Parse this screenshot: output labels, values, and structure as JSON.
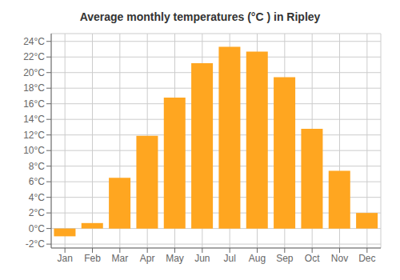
{
  "chart_data": {
    "type": "bar",
    "title": "Average monthly temperatures (°C ) in Ripley",
    "categories": [
      "Jan",
      "Feb",
      "Mar",
      "Apr",
      "May",
      "Jun",
      "Jul",
      "Aug",
      "Sep",
      "Oct",
      "Nov",
      "Dec"
    ],
    "values": [
      -1.0,
      0.7,
      6.5,
      11.9,
      16.8,
      21.2,
      23.3,
      22.7,
      19.4,
      12.8,
      7.4,
      2.0
    ],
    "color": "#FFA620",
    "ylim": [
      -2.5,
      25
    ],
    "yticks": [
      {
        "value": -2,
        "label": "-2°C"
      },
      {
        "value": 0,
        "label": "0°C"
      },
      {
        "value": 2,
        "label": "2°C"
      },
      {
        "value": 4,
        "label": "4°C"
      },
      {
        "value": 6,
        "label": "6°C"
      },
      {
        "value": 8,
        "label": "8°C"
      },
      {
        "value": 10,
        "label": "10°C"
      },
      {
        "value": 12,
        "label": "12°C"
      },
      {
        "value": 14,
        "label": "14°C"
      },
      {
        "value": 16,
        "label": "16°C"
      },
      {
        "value": 18,
        "label": "18°C"
      },
      {
        "value": 20,
        "label": "20°C"
      },
      {
        "value": 22,
        "label": "22°C"
      },
      {
        "value": 24,
        "label": "24°C"
      }
    ],
    "grid": true
  }
}
